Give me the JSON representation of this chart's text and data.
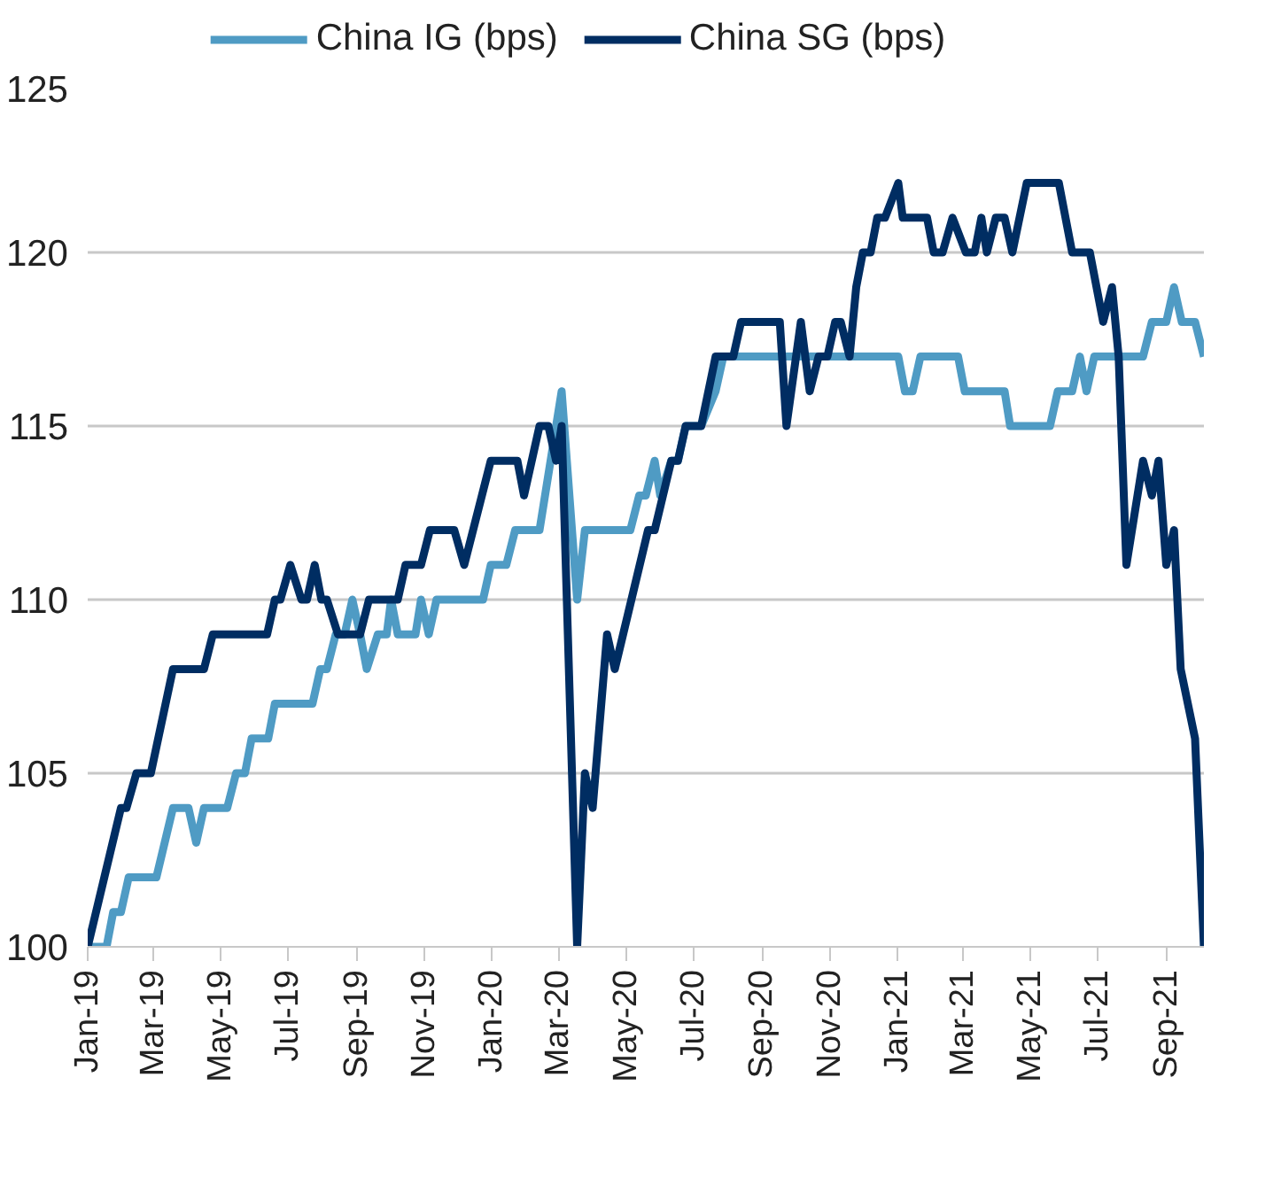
{
  "chart_data": {
    "type": "line",
    "legend": "top",
    "grid": "y",
    "line_style": "solid",
    "marker": "none",
    "xlim": [
      "2019-01-01",
      "2021-10-05"
    ],
    "ylim": [
      100,
      125
    ],
    "yticks": [
      100,
      105,
      110,
      115,
      120,
      125
    ],
    "xticks": [
      {
        "value": "2019-01-01",
        "label": "Jan-19"
      },
      {
        "value": "2019-03-01",
        "label": "Mar-19"
      },
      {
        "value": "2019-05-01",
        "label": "May-19"
      },
      {
        "value": "2019-07-01",
        "label": "Jul-19"
      },
      {
        "value": "2019-09-01",
        "label": "Sep-19"
      },
      {
        "value": "2019-11-01",
        "label": "Nov-19"
      },
      {
        "value": "2020-01-01",
        "label": "Jan-20"
      },
      {
        "value": "2020-03-01",
        "label": "Mar-20"
      },
      {
        "value": "2020-05-01",
        "label": "May-20"
      },
      {
        "value": "2020-07-01",
        "label": "Jul-20"
      },
      {
        "value": "2020-09-01",
        "label": "Sep-20"
      },
      {
        "value": "2020-11-01",
        "label": "Nov-20"
      },
      {
        "value": "2021-01-01",
        "label": "Jan-21"
      },
      {
        "value": "2021-03-01",
        "label": "Mar-21"
      },
      {
        "value": "2021-05-01",
        "label": "May-21"
      },
      {
        "value": "2021-07-01",
        "label": "Jul-21"
      },
      {
        "value": "2021-09-01",
        "label": "Sep-21"
      }
    ],
    "series": [
      {
        "name": "China IG (bps)",
        "color": "#4f9bc4",
        "x": [
          "2019-01-01",
          "2019-01-18",
          "2019-01-24",
          "2019-01-31",
          "2019-02-07",
          "2019-03-04",
          "2019-03-19",
          "2019-04-02",
          "2019-04-09",
          "2019-04-16",
          "2019-05-07",
          "2019-05-15",
          "2019-05-23",
          "2019-05-29",
          "2019-06-13",
          "2019-06-19",
          "2019-07-23",
          "2019-07-30",
          "2019-08-05",
          "2019-08-13",
          "2019-08-21",
          "2019-08-28",
          "2019-09-04",
          "2019-09-10",
          "2019-09-20",
          "2019-09-28",
          "2019-10-02",
          "2019-10-08",
          "2019-10-24",
          "2019-10-29",
          "2019-11-05",
          "2019-11-12",
          "2019-12-24",
          "2019-12-31",
          "2020-01-14",
          "2020-01-22",
          "2020-02-13",
          "2020-03-04",
          "2020-03-18",
          "2020-03-25",
          "2020-05-05",
          "2020-05-13",
          "2020-05-19",
          "2020-05-27",
          "2020-06-01",
          "2020-06-11",
          "2020-06-17",
          "2020-06-24",
          "2020-07-08",
          "2020-07-21",
          "2020-07-28",
          "2021-01-02",
          "2021-01-08",
          "2021-01-15",
          "2021-01-22",
          "2021-02-25",
          "2021-03-03",
          "2021-04-08",
          "2021-04-13",
          "2021-05-19",
          "2021-05-26",
          "2021-06-08",
          "2021-06-15",
          "2021-06-21",
          "2021-06-28",
          "2021-08-11",
          "2021-08-19",
          "2021-09-01",
          "2021-09-08",
          "2021-09-15",
          "2021-09-27",
          "2021-10-05"
        ],
        "values": [
          100,
          100,
          101,
          101,
          102,
          102,
          104,
          104,
          103,
          104,
          104,
          105,
          105,
          106,
          106,
          107,
          107,
          108,
          108,
          109,
          109,
          110,
          109,
          108,
          109,
          109,
          110,
          109,
          109,
          110,
          109,
          110,
          110,
          111,
          111,
          112,
          112,
          116,
          110,
          112,
          112,
          113,
          113,
          114,
          113,
          114,
          114,
          115,
          115,
          116,
          117,
          117,
          116,
          116,
          117,
          117,
          116,
          116,
          115,
          115,
          116,
          116,
          117,
          116,
          117,
          117,
          118,
          118,
          119,
          118,
          118,
          117
        ]
      },
      {
        "name": "China SG (bps)",
        "color": "#002d62",
        "x": [
          "2019-01-01",
          "2019-01-31",
          "2019-02-05",
          "2019-02-14",
          "2019-02-27",
          "2019-03-19",
          "2019-04-16",
          "2019-04-24",
          "2019-06-12",
          "2019-06-19",
          "2019-06-24",
          "2019-07-03",
          "2019-07-13",
          "2019-07-18",
          "2019-07-25",
          "2019-07-31",
          "2019-08-05",
          "2019-08-15",
          "2019-09-04",
          "2019-09-12",
          "2019-10-08",
          "2019-10-15",
          "2019-10-29",
          "2019-11-06",
          "2019-11-28",
          "2019-12-07",
          "2019-12-31",
          "2020-01-24",
          "2020-01-30",
          "2020-02-13",
          "2020-02-21",
          "2020-02-28",
          "2020-03-04",
          "2020-03-18",
          "2020-03-25",
          "2020-04-01",
          "2020-04-14",
          "2020-04-21",
          "2020-05-21",
          "2020-05-27",
          "2020-06-11",
          "2020-06-17",
          "2020-06-24",
          "2020-07-08",
          "2020-07-21",
          "2020-08-06",
          "2020-08-13",
          "2020-09-17",
          "2020-09-23",
          "2020-10-06",
          "2020-10-14",
          "2020-10-22",
          "2020-10-30",
          "2020-11-06",
          "2020-11-11",
          "2020-11-19",
          "2020-11-25",
          "2020-12-01",
          "2020-12-08",
          "2020-12-14",
          "2020-12-21",
          "2021-01-02",
          "2021-01-06",
          "2021-01-28",
          "2021-02-03",
          "2021-02-11",
          "2021-02-20",
          "2021-03-04",
          "2021-03-12",
          "2021-03-18",
          "2021-03-23",
          "2021-03-31",
          "2021-04-08",
          "2021-04-15",
          "2021-04-28",
          "2021-05-27",
          "2021-06-08",
          "2021-06-24",
          "2021-07-06",
          "2021-07-14",
          "2021-07-20",
          "2021-07-27",
          "2021-08-11",
          "2021-08-19",
          "2021-08-25",
          "2021-09-01",
          "2021-09-08",
          "2021-09-14",
          "2021-09-27",
          "2021-10-05"
        ],
        "values": [
          100,
          104,
          104,
          105,
          105,
          108,
          108,
          109,
          109,
          110,
          110,
          111,
          110,
          110,
          111,
          110,
          110,
          109,
          109,
          110,
          110,
          111,
          111,
          112,
          112,
          111,
          114,
          114,
          113,
          115,
          115,
          114,
          115,
          100,
          105,
          104,
          109,
          108,
          112,
          112,
          114,
          114,
          115,
          115,
          117,
          117,
          118,
          118,
          115,
          118,
          116,
          117,
          117,
          118,
          118,
          117,
          119,
          120,
          120,
          121,
          121,
          122,
          121,
          121,
          120,
          120,
          121,
          120,
          120,
          121,
          120,
          121,
          121,
          120,
          122,
          122,
          120,
          120,
          118,
          119,
          117,
          111,
          114,
          113,
          114,
          111,
          112,
          108,
          106,
          100
        ]
      }
    ]
  }
}
